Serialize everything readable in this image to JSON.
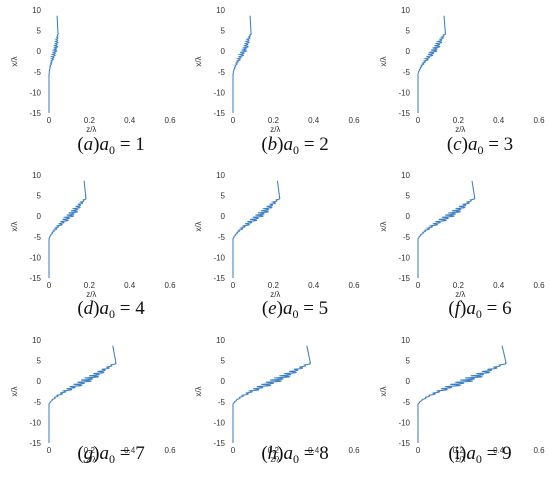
{
  "figure": {
    "xlabel": "z/λ",
    "ylabel": "x/λ",
    "x_ticks": [
      "0",
      "0.2",
      "0.4",
      "0.6"
    ],
    "y_ticks": [
      "10",
      "5",
      "0",
      "-5",
      "-10",
      "-15"
    ],
    "line_color": "#3d7fc4"
  },
  "chart_data": [
    {
      "type": "line",
      "caption": {
        "letter": "a",
        "italic_letter": true,
        "a0": "1"
      },
      "a0": 1,
      "xlim": [
        0,
        0.6
      ],
      "ylim": [
        -15,
        10
      ],
      "xlabel": "z/λ",
      "ylabel": "x/λ"
    },
    {
      "type": "line",
      "caption": {
        "letter": "b",
        "italic_letter": true,
        "a0": "2"
      },
      "a0": 2,
      "xlim": [
        0,
        0.6
      ],
      "ylim": [
        -15,
        10
      ],
      "xlabel": "z/λ",
      "ylabel": "x/λ"
    },
    {
      "type": "line",
      "caption": {
        "letter": "c",
        "italic_letter": true,
        "a0": "3"
      },
      "a0": 3,
      "xlim": [
        0,
        0.6
      ],
      "ylim": [
        -15,
        10
      ],
      "xlabel": "z/λ",
      "ylabel": "x/λ"
    },
    {
      "type": "line",
      "caption": {
        "letter": "d",
        "italic_letter": true,
        "a0": "4"
      },
      "a0": 4,
      "xlim": [
        0,
        0.6
      ],
      "ylim": [
        -15,
        10
      ],
      "xlabel": "z/λ",
      "ylabel": "x/λ"
    },
    {
      "type": "line",
      "caption": {
        "letter": "e",
        "italic_letter": true,
        "a0": "5"
      },
      "a0": 5,
      "xlim": [
        0,
        0.6
      ],
      "ylim": [
        -15,
        10
      ],
      "xlabel": "z/λ",
      "ylabel": "x/λ"
    },
    {
      "type": "line",
      "caption": {
        "letter": "f",
        "italic_letter": true,
        "a0": "6"
      },
      "a0": 6,
      "xlim": [
        0,
        0.6
      ],
      "ylim": [
        -15,
        10
      ],
      "xlabel": "z/λ",
      "ylabel": "x/λ"
    },
    {
      "type": "line",
      "caption": {
        "letter": "g",
        "italic_letter": true,
        "a0": "7"
      },
      "a0": 7,
      "xlim": [
        0,
        0.6
      ],
      "ylim": [
        -15,
        10
      ],
      "xlabel": "z/λ",
      "ylabel": "x/λ"
    },
    {
      "type": "line",
      "caption": {
        "letter": "h",
        "italic_letter": true,
        "a0": "8"
      },
      "a0": 8,
      "xlim": [
        0,
        0.6
      ],
      "ylim": [
        -15,
        10
      ],
      "xlabel": "z/λ",
      "ylabel": "x/λ"
    },
    {
      "type": "line",
      "caption": {
        "letter": "i",
        "italic_letter": false,
        "a0": "9"
      },
      "a0": 9,
      "xlim": [
        0,
        0.6
      ],
      "ylim": [
        -15,
        10
      ],
      "xlabel": "z/λ",
      "ylabel": "x/λ"
    }
  ]
}
